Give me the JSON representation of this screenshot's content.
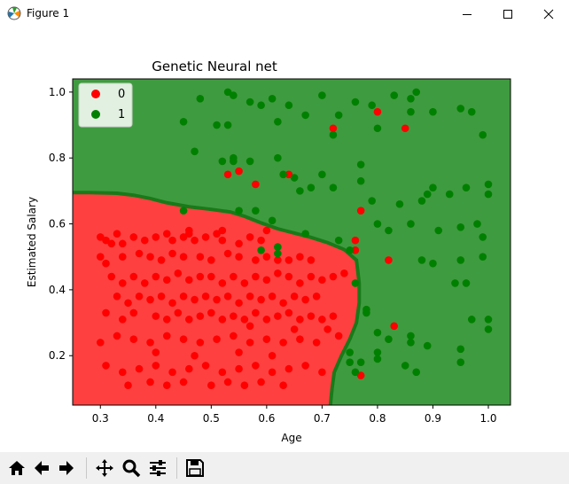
{
  "window": {
    "title": "Figure 1"
  },
  "toolbar": {
    "buttons": [
      "home-icon",
      "back-icon",
      "forward-icon",
      "pan-icon",
      "zoom-icon",
      "configure-icon",
      "save-icon"
    ]
  },
  "chart_data": {
    "type": "scatter",
    "title": "Genetic Neural net",
    "xlabel": "Age",
    "ylabel": "Estimated Salary",
    "xlim": [
      0.25,
      1.04
    ],
    "ylim": [
      0.05,
      1.04
    ],
    "xticks": [
      "0.3",
      "0.4",
      "0.5",
      "0.6",
      "0.7",
      "0.8",
      "0.9",
      "1.0"
    ],
    "yticks": [
      "0.2",
      "0.4",
      "0.6",
      "0.8",
      "1.0"
    ],
    "legend": {
      "position": "upper-left",
      "entries": [
        "0",
        "1"
      ]
    },
    "region_colors": {
      "class_0": "#ff4040",
      "class_1": "#3f9b3f",
      "boundary": "#1a7a1a"
    },
    "decision_boundary": [
      [
        0.25,
        0.695
      ],
      [
        0.28,
        0.695
      ],
      [
        0.33,
        0.693
      ],
      [
        0.36,
        0.687
      ],
      [
        0.39,
        0.677
      ],
      [
        0.42,
        0.664
      ],
      [
        0.46,
        0.652
      ],
      [
        0.5,
        0.644
      ],
      [
        0.535,
        0.636
      ],
      [
        0.56,
        0.623
      ],
      [
        0.59,
        0.603
      ],
      [
        0.62,
        0.585
      ],
      [
        0.65,
        0.572
      ],
      [
        0.68,
        0.559
      ],
      [
        0.71,
        0.543
      ],
      [
        0.74,
        0.522
      ],
      [
        0.762,
        0.49
      ],
      [
        0.767,
        0.42
      ],
      [
        0.767,
        0.36
      ],
      [
        0.762,
        0.3
      ],
      [
        0.75,
        0.25
      ],
      [
        0.735,
        0.2
      ],
      [
        0.722,
        0.15
      ],
      [
        0.718,
        0.1
      ],
      [
        0.715,
        0.05
      ]
    ],
    "series": [
      {
        "name": "0",
        "color": "#ff0000",
        "points": [
          [
            0.3,
            0.56
          ],
          [
            0.31,
            0.55
          ],
          [
            0.32,
            0.54
          ],
          [
            0.34,
            0.54
          ],
          [
            0.33,
            0.57
          ],
          [
            0.36,
            0.56
          ],
          [
            0.38,
            0.55
          ],
          [
            0.4,
            0.56
          ],
          [
            0.42,
            0.57
          ],
          [
            0.43,
            0.55
          ],
          [
            0.45,
            0.56
          ],
          [
            0.46,
            0.57
          ],
          [
            0.47,
            0.55
          ],
          [
            0.49,
            0.56
          ],
          [
            0.51,
            0.57
          ],
          [
            0.52,
            0.55
          ],
          [
            0.55,
            0.54
          ],
          [
            0.57,
            0.56
          ],
          [
            0.59,
            0.55
          ],
          [
            0.3,
            0.5
          ],
          [
            0.31,
            0.48
          ],
          [
            0.34,
            0.5
          ],
          [
            0.37,
            0.51
          ],
          [
            0.39,
            0.5
          ],
          [
            0.41,
            0.49
          ],
          [
            0.43,
            0.51
          ],
          [
            0.45,
            0.5
          ],
          [
            0.48,
            0.5
          ],
          [
            0.5,
            0.49
          ],
          [
            0.53,
            0.51
          ],
          [
            0.55,
            0.5
          ],
          [
            0.58,
            0.49
          ],
          [
            0.6,
            0.5
          ],
          [
            0.62,
            0.49
          ],
          [
            0.64,
            0.49
          ],
          [
            0.66,
            0.5
          ],
          [
            0.68,
            0.49
          ],
          [
            0.32,
            0.44
          ],
          [
            0.34,
            0.42
          ],
          [
            0.36,
            0.44
          ],
          [
            0.38,
            0.42
          ],
          [
            0.4,
            0.44
          ],
          [
            0.42,
            0.43
          ],
          [
            0.44,
            0.45
          ],
          [
            0.46,
            0.43
          ],
          [
            0.48,
            0.44
          ],
          [
            0.5,
            0.44
          ],
          [
            0.52,
            0.42
          ],
          [
            0.54,
            0.44
          ],
          [
            0.56,
            0.42
          ],
          [
            0.58,
            0.44
          ],
          [
            0.6,
            0.43
          ],
          [
            0.62,
            0.45
          ],
          [
            0.64,
            0.44
          ],
          [
            0.66,
            0.42
          ],
          [
            0.68,
            0.44
          ],
          [
            0.7,
            0.43
          ],
          [
            0.72,
            0.44
          ],
          [
            0.74,
            0.45
          ],
          [
            0.33,
            0.38
          ],
          [
            0.35,
            0.36
          ],
          [
            0.37,
            0.38
          ],
          [
            0.39,
            0.37
          ],
          [
            0.41,
            0.38
          ],
          [
            0.43,
            0.36
          ],
          [
            0.45,
            0.38
          ],
          [
            0.47,
            0.37
          ],
          [
            0.49,
            0.38
          ],
          [
            0.51,
            0.37
          ],
          [
            0.53,
            0.38
          ],
          [
            0.55,
            0.36
          ],
          [
            0.57,
            0.38
          ],
          [
            0.59,
            0.37
          ],
          [
            0.61,
            0.38
          ],
          [
            0.63,
            0.36
          ],
          [
            0.65,
            0.38
          ],
          [
            0.67,
            0.37
          ],
          [
            0.69,
            0.38
          ],
          [
            0.31,
            0.33
          ],
          [
            0.34,
            0.31
          ],
          [
            0.36,
            0.33
          ],
          [
            0.4,
            0.32
          ],
          [
            0.42,
            0.31
          ],
          [
            0.44,
            0.33
          ],
          [
            0.46,
            0.31
          ],
          [
            0.48,
            0.32
          ],
          [
            0.5,
            0.33
          ],
          [
            0.52,
            0.31
          ],
          [
            0.54,
            0.32
          ],
          [
            0.56,
            0.31
          ],
          [
            0.58,
            0.33
          ],
          [
            0.6,
            0.31
          ],
          [
            0.62,
            0.32
          ],
          [
            0.64,
            0.33
          ],
          [
            0.66,
            0.31
          ],
          [
            0.68,
            0.32
          ],
          [
            0.7,
            0.31
          ],
          [
            0.72,
            0.32
          ],
          [
            0.3,
            0.24
          ],
          [
            0.33,
            0.26
          ],
          [
            0.36,
            0.25
          ],
          [
            0.39,
            0.24
          ],
          [
            0.42,
            0.26
          ],
          [
            0.45,
            0.25
          ],
          [
            0.48,
            0.24
          ],
          [
            0.51,
            0.25
          ],
          [
            0.54,
            0.26
          ],
          [
            0.57,
            0.24
          ],
          [
            0.6,
            0.25
          ],
          [
            0.63,
            0.24
          ],
          [
            0.66,
            0.25
          ],
          [
            0.69,
            0.24
          ],
          [
            0.31,
            0.17
          ],
          [
            0.34,
            0.15
          ],
          [
            0.37,
            0.16
          ],
          [
            0.4,
            0.17
          ],
          [
            0.43,
            0.15
          ],
          [
            0.46,
            0.16
          ],
          [
            0.49,
            0.17
          ],
          [
            0.52,
            0.15
          ],
          [
            0.55,
            0.16
          ],
          [
            0.58,
            0.17
          ],
          [
            0.61,
            0.15
          ],
          [
            0.64,
            0.16
          ],
          [
            0.67,
            0.17
          ],
          [
            0.7,
            0.15
          ],
          [
            0.35,
            0.11
          ],
          [
            0.39,
            0.12
          ],
          [
            0.42,
            0.11
          ],
          [
            0.45,
            0.12
          ],
          [
            0.5,
            0.11
          ],
          [
            0.53,
            0.12
          ],
          [
            0.56,
            0.11
          ],
          [
            0.59,
            0.12
          ],
          [
            0.63,
            0.11
          ],
          [
            0.4,
            0.21
          ],
          [
            0.47,
            0.2
          ],
          [
            0.55,
            0.21
          ],
          [
            0.61,
            0.2
          ],
          [
            0.57,
            0.29
          ],
          [
            0.65,
            0.28
          ],
          [
            0.71,
            0.28
          ],
          [
            0.73,
            0.26
          ],
          [
            0.53,
            0.75
          ],
          [
            0.55,
            0.76
          ],
          [
            0.58,
            0.72
          ],
          [
            0.64,
            0.75
          ],
          [
            0.72,
            0.89
          ],
          [
            0.8,
            0.94
          ],
          [
            0.85,
            0.89
          ],
          [
            0.77,
            0.64
          ],
          [
            0.76,
            0.55
          ],
          [
            0.76,
            0.52
          ],
          [
            0.82,
            0.49
          ],
          [
            0.83,
            0.29
          ],
          [
            0.77,
            0.14
          ],
          [
            0.6,
            0.58
          ],
          [
            0.46,
            0.58
          ],
          [
            0.52,
            0.58
          ]
        ]
      },
      {
        "name": "1",
        "color": "#008000",
        "points": [
          [
            0.45,
            0.91
          ],
          [
            0.48,
            0.98
          ],
          [
            0.51,
            0.9
          ],
          [
            0.53,
            1.0
          ],
          [
            0.54,
            0.99
          ],
          [
            0.57,
            0.97
          ],
          [
            0.53,
            0.9
          ],
          [
            0.59,
            0.96
          ],
          [
            0.61,
            0.98
          ],
          [
            0.62,
            0.91
          ],
          [
            0.64,
            0.96
          ],
          [
            0.67,
            0.93
          ],
          [
            0.7,
            0.99
          ],
          [
            0.72,
            0.87
          ],
          [
            0.73,
            0.93
          ],
          [
            0.76,
            0.97
          ],
          [
            0.79,
            0.96
          ],
          [
            0.8,
            0.89
          ],
          [
            0.83,
            0.99
          ],
          [
            0.86,
            0.98
          ],
          [
            0.87,
            1.0
          ],
          [
            0.86,
            0.94
          ],
          [
            0.9,
            0.94
          ],
          [
            0.95,
            0.95
          ],
          [
            0.97,
            0.94
          ],
          [
            0.99,
            0.87
          ],
          [
            0.47,
            0.82
          ],
          [
            0.52,
            0.79
          ],
          [
            0.54,
            0.79
          ],
          [
            0.54,
            0.8
          ],
          [
            0.57,
            0.79
          ],
          [
            0.62,
            0.8
          ],
          [
            0.65,
            0.74
          ],
          [
            0.66,
            0.7
          ],
          [
            0.68,
            0.71
          ],
          [
            0.7,
            0.75
          ],
          [
            0.72,
            0.71
          ],
          [
            0.77,
            0.78
          ],
          [
            0.77,
            0.73
          ],
          [
            0.79,
            0.67
          ],
          [
            0.8,
            0.6
          ],
          [
            0.82,
            0.58
          ],
          [
            0.84,
            0.66
          ],
          [
            0.86,
            0.6
          ],
          [
            0.88,
            0.67
          ],
          [
            0.89,
            0.69
          ],
          [
            0.9,
            0.71
          ],
          [
            0.93,
            0.69
          ],
          [
            0.96,
            0.71
          ],
          [
            0.98,
            0.6
          ],
          [
            1.0,
            0.72
          ],
          [
            1.0,
            0.69
          ],
          [
            0.99,
            0.56
          ],
          [
            0.95,
            0.59
          ],
          [
            0.91,
            0.58
          ],
          [
            0.88,
            0.49
          ],
          [
            0.9,
            0.48
          ],
          [
            0.95,
            0.49
          ],
          [
            0.99,
            0.5
          ],
          [
            0.96,
            0.42
          ],
          [
            0.94,
            0.42
          ],
          [
            0.59,
            0.52
          ],
          [
            0.62,
            0.53
          ],
          [
            0.62,
            0.51
          ],
          [
            0.75,
            0.52
          ],
          [
            0.76,
            0.42
          ],
          [
            0.78,
            0.34
          ],
          [
            0.78,
            0.33
          ],
          [
            0.8,
            0.27
          ],
          [
            0.82,
            0.25
          ],
          [
            0.86,
            0.24
          ],
          [
            0.86,
            0.26
          ],
          [
            0.89,
            0.23
          ],
          [
            0.85,
            0.17
          ],
          [
            0.87,
            0.15
          ],
          [
            0.8,
            0.19
          ],
          [
            0.77,
            0.18
          ],
          [
            0.75,
            0.18
          ],
          [
            0.76,
            0.15
          ],
          [
            0.75,
            0.21
          ],
          [
            0.8,
            0.21
          ],
          [
            0.95,
            0.22
          ],
          [
            0.95,
            0.18
          ],
          [
            0.97,
            0.31
          ],
          [
            1.0,
            0.31
          ],
          [
            1.0,
            0.28
          ],
          [
            0.45,
            0.64
          ],
          [
            0.55,
            0.64
          ],
          [
            0.58,
            0.64
          ],
          [
            0.61,
            0.61
          ],
          [
            0.67,
            0.57
          ],
          [
            0.73,
            0.55
          ],
          [
            0.63,
            0.75
          ]
        ]
      }
    ]
  }
}
